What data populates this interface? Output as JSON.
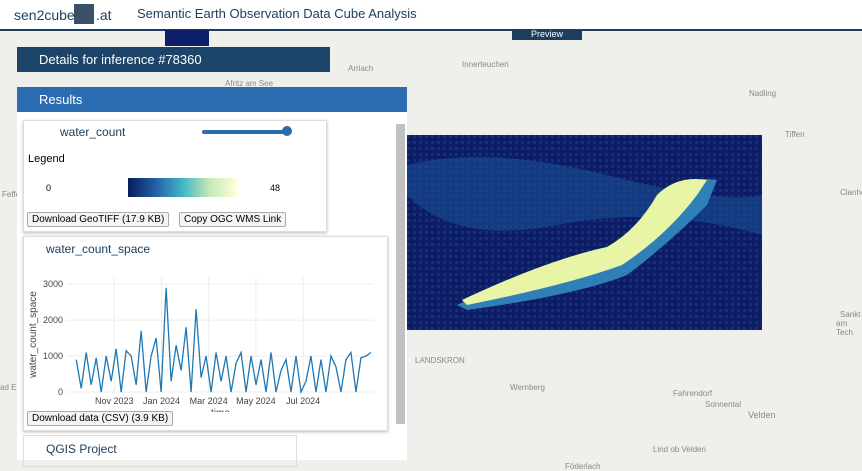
{
  "header": {
    "brand": "sen2cube",
    "brand_suffix": ".at",
    "title": "Semantic Earth Observation Data Cube Analysis",
    "preview": "Preview"
  },
  "map": {
    "labels": [
      "Afritz am See",
      "Arriach",
      "Innerteuchen",
      "Nadling",
      "Tiffen",
      "Clanhe",
      "Sankt",
      "am Tech",
      "LANDSKRON",
      "Wernberg",
      "Fahrendorf",
      "Sonnental",
      "Velden",
      "Lind ob Velden",
      "Föderlach",
      "Feffe",
      "ad Ei"
    ]
  },
  "panel": {
    "details": "Details for inference #78360",
    "results": "Results",
    "layer": {
      "name": "water_count",
      "legend": "Legend",
      "legend_min": "0",
      "legend_max": "48",
      "download": "Download GeoTIFF (17.9 KB)",
      "wms": "Copy OGC WMS Link"
    },
    "plot": {
      "name": "water_count_space",
      "download": "Download data (CSV) (3.9 KB)",
      "chart_data": {
        "type": "line",
        "x_label": "time",
        "y_label": "water_count_space",
        "color": "#1f77b4",
        "xlim": [
          "2023-09",
          "2024-10"
        ],
        "xticks": [
          {
            "value": "2023-11",
            "label": "Nov 2023"
          },
          {
            "value": "2024-01",
            "label": "Jan 2024"
          },
          {
            "value": "2024-03",
            "label": "Mar 2024"
          },
          {
            "value": "2024-05",
            "label": "May 2024"
          },
          {
            "value": "2024-07",
            "label": "Jul 2024"
          }
        ],
        "ylim": [
          0,
          3200
        ],
        "yticks": [
          0,
          1000,
          2000,
          3000
        ],
        "values": [
          900,
          100,
          1100,
          200,
          950,
          0,
          1000,
          300,
          1200,
          0,
          1150,
          1000,
          200,
          1700,
          0,
          1000,
          1500,
          0,
          2900,
          300,
          1300,
          600,
          1800,
          0,
          2300,
          400,
          1000,
          0,
          1100,
          300,
          1000,
          0,
          800,
          1100,
          0,
          1000,
          200,
          900,
          0,
          1100,
          0,
          600,
          900,
          0,
          1000,
          0,
          300,
          1000,
          0,
          900,
          0,
          1000,
          700,
          0,
          900,
          1100,
          0,
          950,
          1000,
          1100
        ]
      }
    },
    "qgis": "QGIS Project"
  }
}
